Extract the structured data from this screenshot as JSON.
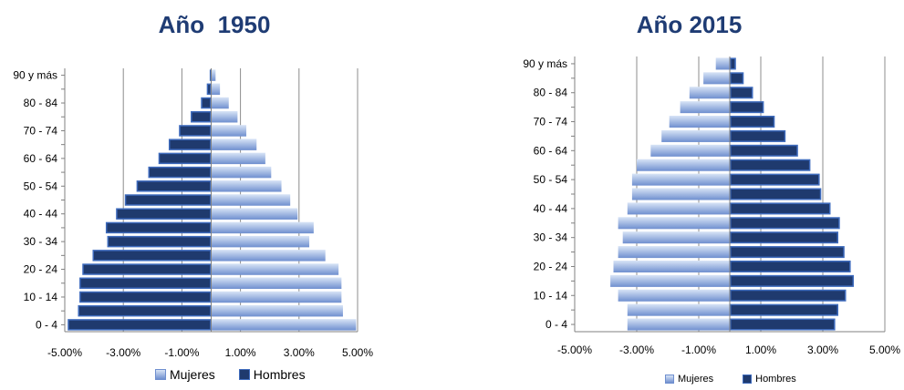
{
  "colors": {
    "title": "#1f3c74",
    "women_light": "#d8e4f6",
    "women_dark": "#6f8fcf",
    "men": "#1f3a6e",
    "men_border": "#3e6bbd",
    "grid": "#8c8c8c"
  },
  "chart_data": [
    {
      "type": "bar",
      "orientation": "horizontal",
      "title": "Año  1950",
      "categories": [
        "0 - 4",
        "5 - 9",
        "10 - 14",
        "15 - 19",
        "20 - 24",
        "25 - 29",
        "30 - 34",
        "35 - 39",
        "40 - 44",
        "45 - 49",
        "50 - 54",
        "55 - 59",
        "60 - 64",
        "65 - 69",
        "70 - 74",
        "75 - 79",
        "80 - 84",
        "85 - 89",
        "90 y más"
      ],
      "category_labels": [
        "0 -  4",
        "",
        "10 - 14",
        "",
        "20 - 24",
        "",
        "30 - 34",
        "",
        "40 - 44",
        "",
        "50 - 54",
        "",
        "60 - 64",
        "",
        "70 - 74",
        "",
        "80 - 84",
        "",
        "90 y más"
      ],
      "xlim": [
        -5.0,
        5.0
      ],
      "x_ticks": [
        "-5.00%",
        "-3.00%",
        "-1.00%",
        "1.00%",
        "3.00%",
        "5.00%"
      ],
      "x_tick_values": [
        -5,
        -3,
        -1,
        1,
        3,
        5
      ],
      "grid": true,
      "legend": "bottom",
      "series": [
        {
          "name": "Mujeres",
          "values": [
            4.95,
            4.5,
            4.45,
            4.45,
            4.35,
            3.9,
            3.35,
            3.5,
            2.95,
            2.7,
            2.4,
            2.05,
            1.85,
            1.55,
            1.2,
            0.9,
            0.6,
            0.3,
            0.15
          ]
        },
        {
          "name": "Hombres",
          "values": [
            -4.9,
            -4.55,
            -4.5,
            -4.5,
            -4.4,
            -4.05,
            -3.55,
            -3.6,
            -3.25,
            -2.95,
            -2.55,
            -2.15,
            -1.8,
            -1.45,
            -1.1,
            -0.7,
            -0.35,
            -0.15,
            -0.05
          ]
        }
      ],
      "legend_labels": [
        "Mujeres",
        "Hombres"
      ]
    },
    {
      "type": "bar",
      "orientation": "horizontal",
      "title": "Año 2015",
      "categories": [
        "0 - 4",
        "5 - 9",
        "10 - 14",
        "15 - 19",
        "20 - 24",
        "25 - 29",
        "30 - 34",
        "35 - 39",
        "40 - 44",
        "45 - 49",
        "50 - 54",
        "55 - 59",
        "60 - 64",
        "65 - 69",
        "70 - 74",
        "75 - 79",
        "80 - 84",
        "85 - 89",
        "90 y más"
      ],
      "category_labels": [
        "0 - 4",
        "",
        "10 - 14",
        "",
        "20 - 24",
        "",
        "30 - 34",
        "",
        "40 - 44",
        "",
        "50 - 54",
        "",
        "60 - 64",
        "",
        "70 - 74",
        "",
        "80 - 84",
        "",
        "90  y más"
      ],
      "xlim": [
        -5.0,
        5.0
      ],
      "x_ticks": [
        "-5.00%",
        "-3.00%",
        "-1.00%",
        "1.00%",
        "3.00%",
        "5.00%"
      ],
      "x_tick_values": [
        -5,
        -3,
        -1,
        1,
        3,
        5
      ],
      "grid": true,
      "legend": "bottom",
      "series": [
        {
          "name": "Mujeres",
          "values": [
            -3.3,
            -3.3,
            -3.6,
            -3.85,
            -3.75,
            -3.6,
            -3.45,
            -3.6,
            -3.3,
            -3.15,
            -3.15,
            -3.0,
            -2.55,
            -2.2,
            -1.95,
            -1.6,
            -1.3,
            -0.85,
            -0.45
          ]
        },
        {
          "name": "Hombres",
          "values": [
            3.4,
            3.5,
            3.75,
            4.0,
            3.9,
            3.7,
            3.5,
            3.55,
            3.25,
            2.95,
            2.9,
            2.6,
            2.2,
            1.8,
            1.45,
            1.1,
            0.75,
            0.45,
            0.2
          ]
        }
      ],
      "legend_labels": [
        "Mujeres",
        "Hombres"
      ]
    }
  ]
}
